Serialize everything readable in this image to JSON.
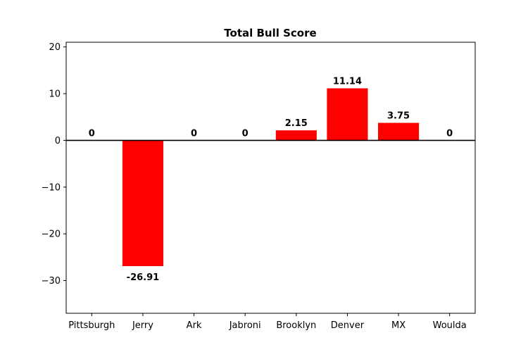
{
  "chart_data": {
    "type": "bar",
    "title": "Total Bull Score",
    "xlabel": "",
    "ylabel": "",
    "categories": [
      "Pittsburgh",
      "Jerry",
      "Ark",
      "Jabroni",
      "Brooklyn",
      "Denver",
      "MX",
      "Woulda"
    ],
    "values": [
      0,
      -26.91,
      0,
      0,
      2.15,
      11.14,
      3.75,
      0
    ],
    "value_labels": [
      "0",
      "-26.91",
      "0",
      "0",
      "2.15",
      "11.14",
      "3.75",
      "0"
    ],
    "ylim": [
      -37,
      21
    ],
    "yticks": [
      -30,
      -20,
      -10,
      0,
      10,
      20
    ],
    "ytick_labels": [
      "−30",
      "−20",
      "−10",
      "0",
      "10",
      "20"
    ],
    "bar_color": "#ff0000",
    "zero_line": true,
    "grid": false,
    "legend": "none"
  }
}
